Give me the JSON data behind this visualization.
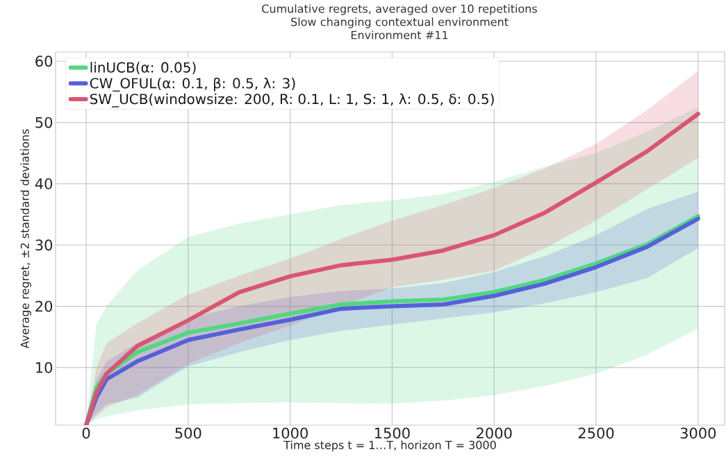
{
  "chart_data": {
    "type": "line",
    "title": "Cumulative regrets, averaged over 10 repetitions",
    "subtitle": "Slow changing contextual environment\nEnvironment #11",
    "xlabel": "Time steps t = 1…T, horizon T = 3000",
    "ylabel": "Average regret, ±2 standard deviations",
    "x": [
      0,
      50,
      100,
      250,
      500,
      750,
      1000,
      1250,
      1500,
      1750,
      2000,
      2250,
      2500,
      2750,
      3000
    ],
    "series": [
      {
        "name": "linUCB(α: 0.05)",
        "color": "#50d880",
        "values": [
          0.6,
          6.7,
          9.0,
          12.5,
          15.7,
          17.2,
          18.8,
          20.3,
          20.8,
          21.1,
          22.3,
          24.3,
          27.0,
          30.1,
          34.7
        ],
        "lower": [
          0.6,
          1.5,
          2,
          3,
          4,
          4.2,
          4.3,
          4.2,
          4.1,
          4.6,
          5.5,
          7,
          9,
          12.1,
          16.4
        ],
        "upper": [
          0.6,
          17,
          20,
          25.8,
          31.3,
          33.5,
          35,
          36.5,
          37.3,
          38.3,
          40.3,
          42.8,
          45,
          48.5,
          52.5
        ]
      },
      {
        "name": "CW_OFUL(α: 0.1, β: 0.5, λ: 3)",
        "color": "#5561d8",
        "values": [
          0.6,
          5.1,
          8.1,
          11.0,
          14.5,
          16.2,
          17.8,
          19.6,
          20.0,
          20.3,
          21.7,
          23.7,
          26.4,
          29.7,
          34.3
        ],
        "lower": [
          0.6,
          2.5,
          4,
          5.1,
          10.2,
          12.5,
          14.5,
          16,
          17,
          18,
          19,
          20.5,
          22.3,
          24.6,
          29.5
        ],
        "upper": [
          0.6,
          8,
          11,
          14,
          18,
          20,
          21.5,
          22.5,
          22.9,
          23.8,
          25.6,
          28.2,
          31.6,
          35.9,
          38.7
        ]
      },
      {
        "name": "SW_UCB(windowsize: 200, R: 0.1, L: 1, S: 1, λ: 0.5, δ: 0.5)",
        "color": "#db5572",
        "values": [
          0.6,
          5.9,
          9.0,
          13.5,
          17.7,
          22.3,
          24.9,
          26.7,
          27.6,
          29.1,
          31.6,
          35.3,
          40.2,
          45.3,
          51.4
        ],
        "lower": [
          0.6,
          2,
          3.5,
          5.5,
          10.6,
          14,
          16.8,
          20,
          23.1,
          24.3,
          25.8,
          29.5,
          34,
          39.1,
          44.2
        ],
        "upper": [
          0.6,
          10,
          14,
          17.2,
          21.9,
          25,
          27.8,
          31,
          34,
          36.5,
          39.3,
          42.5,
          46.5,
          52,
          58.4
        ]
      }
    ],
    "xlim": [
      -150,
      3130
    ],
    "ylim": [
      0.6,
      61.5
    ],
    "xticks": [
      0,
      500,
      1000,
      1500,
      2000,
      2500,
      3000
    ],
    "yticks": [
      10,
      20,
      30,
      40,
      50,
      60
    ],
    "grid": true,
    "legend": "top left",
    "line_style": "solid"
  }
}
